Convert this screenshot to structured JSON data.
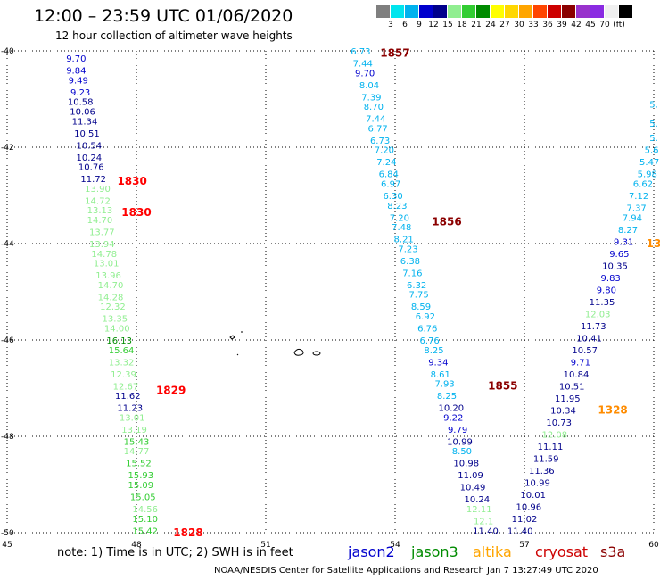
{
  "header": {
    "title": "12:00 – 23:59 UTC 01/06/2020",
    "subtitle": "12 hour collection of altimeter wave heights"
  },
  "colorbar": {
    "colors": [
      "#7f7f7f",
      "#00e5ee",
      "#00b2ee",
      "#0000cd",
      "#00008b",
      "#90ee90",
      "#32cd32",
      "#008b00",
      "#ffff00",
      "#ffd700",
      "#ffa500",
      "#ff4500",
      "#cd0000",
      "#8b0000",
      "#9932cc",
      "#8a2be2",
      "#f0f0f0",
      "#000000"
    ],
    "labels": [
      "3",
      "6",
      "9",
      "12",
      "15",
      "18",
      "21",
      "24",
      "27",
      "30",
      "33",
      "36",
      "39",
      "42",
      "45",
      "70",
      "(ft)"
    ]
  },
  "map": {
    "x_ticks": [
      "45",
      "48",
      "51",
      "54",
      "57",
      "60"
    ],
    "y_ticks": [
      "-40",
      "-42",
      "-44",
      "-46",
      "-48",
      "-50"
    ],
    "lon_range": [
      45,
      60
    ],
    "lat_range": [
      -50,
      -40
    ]
  },
  "tracks": [
    {
      "name": "track-1830-1828",
      "color_key": "mixed",
      "points": [
        {
          "lon": 46.6,
          "lat": -40.15,
          "v": "9.70",
          "c": "#0000cd"
        },
        {
          "lon": 46.6,
          "lat": -40.4,
          "v": "9.84",
          "c": "#0000cd"
        },
        {
          "lon": 46.65,
          "lat": -40.6,
          "v": "9.49",
          "c": "#0000cd"
        },
        {
          "lon": 46.7,
          "lat": -40.85,
          "v": "9.23",
          "c": "#0000cd"
        },
        {
          "lon": 46.7,
          "lat": -41.05,
          "v": "10.58",
          "c": "#00008b"
        },
        {
          "lon": 46.75,
          "lat": -41.25,
          "v": "10.06",
          "c": "#00008b"
        },
        {
          "lon": 46.8,
          "lat": -41.45,
          "v": "11.34",
          "c": "#00008b"
        },
        {
          "lon": 46.85,
          "lat": -41.7,
          "v": "10.51",
          "c": "#00008b"
        },
        {
          "lon": 46.9,
          "lat": -41.95,
          "v": "10.54",
          "c": "#00008b"
        },
        {
          "lon": 46.9,
          "lat": -42.2,
          "v": "10.24",
          "c": "#00008b"
        },
        {
          "lon": 46.95,
          "lat": -42.4,
          "v": "10.76",
          "c": "#00008b"
        },
        {
          "lon": 47.0,
          "lat": -42.65,
          "v": "11.72",
          "c": "#00008b"
        },
        {
          "lon": 47.1,
          "lat": -42.85,
          "v": "13.90",
          "c": "#90ee90"
        },
        {
          "lon": 47.1,
          "lat": -43.1,
          "v": "14.72",
          "c": "#90ee90"
        },
        {
          "lon": 47.15,
          "lat": -43.3,
          "v": "13.13",
          "c": "#90ee90"
        },
        {
          "lon": 47.15,
          "lat": -43.5,
          "v": "14.70",
          "c": "#90ee90"
        },
        {
          "lon": 47.2,
          "lat": -43.75,
          "v": "13.77",
          "c": "#90ee90"
        },
        {
          "lon": 47.2,
          "lat": -44.0,
          "v": "13.94",
          "c": "#90ee90"
        },
        {
          "lon": 47.25,
          "lat": -44.2,
          "v": "14.78",
          "c": "#90ee90"
        },
        {
          "lon": 47.3,
          "lat": -44.4,
          "v": "13.01",
          "c": "#90ee90"
        },
        {
          "lon": 47.35,
          "lat": -44.65,
          "v": "13.96",
          "c": "#90ee90"
        },
        {
          "lon": 47.4,
          "lat": -44.85,
          "v": "14.70",
          "c": "#90ee90"
        },
        {
          "lon": 47.4,
          "lat": -45.1,
          "v": "14.28",
          "c": "#90ee90"
        },
        {
          "lon": 47.45,
          "lat": -45.3,
          "v": "12.32",
          "c": "#90ee90"
        },
        {
          "lon": 47.5,
          "lat": -45.55,
          "v": "13.35",
          "c": "#90ee90"
        },
        {
          "lon": 47.55,
          "lat": -45.75,
          "v": "14.00",
          "c": "#90ee90"
        },
        {
          "lon": 47.6,
          "lat": -46.0,
          "v": "16.13",
          "c": "#008b00"
        },
        {
          "lon": 47.65,
          "lat": -46.2,
          "v": "15.64",
          "c": "#32cd32"
        },
        {
          "lon": 47.65,
          "lat": -46.45,
          "v": "13.32",
          "c": "#90ee90"
        },
        {
          "lon": 47.7,
          "lat": -46.7,
          "v": "12.39",
          "c": "#90ee90"
        },
        {
          "lon": 47.75,
          "lat": -46.95,
          "v": "12.67",
          "c": "#90ee90"
        },
        {
          "lon": 47.8,
          "lat": -47.15,
          "v": "11.62",
          "c": "#00008b"
        },
        {
          "lon": 47.85,
          "lat": -47.4,
          "v": "11.23",
          "c": "#00008b"
        },
        {
          "lon": 47.9,
          "lat": -47.6,
          "v": "13.01",
          "c": "#90ee90"
        },
        {
          "lon": 47.95,
          "lat": -47.85,
          "v": "13.19",
          "c": "#90ee90"
        },
        {
          "lon": 48.0,
          "lat": -48.1,
          "v": "15.43",
          "c": "#32cd32"
        },
        {
          "lon": 48.0,
          "lat": -48.3,
          "v": "14.77",
          "c": "#90ee90"
        },
        {
          "lon": 48.05,
          "lat": -48.55,
          "v": "15.52",
          "c": "#32cd32"
        },
        {
          "lon": 48.1,
          "lat": -48.8,
          "v": "15.93",
          "c": "#32cd32"
        },
        {
          "lon": 48.1,
          "lat": -49.0,
          "v": "15.09",
          "c": "#32cd32"
        },
        {
          "lon": 48.15,
          "lat": -49.25,
          "v": "15.05",
          "c": "#32cd32"
        },
        {
          "lon": 48.2,
          "lat": -49.5,
          "v": "14.56",
          "c": "#90ee90"
        },
        {
          "lon": 48.2,
          "lat": -49.7,
          "v": "15.10",
          "c": "#32cd32"
        },
        {
          "lon": 48.2,
          "lat": -49.95,
          "v": "15.42",
          "c": "#32cd32"
        }
      ]
    },
    {
      "name": "track-1857-1855",
      "color_key": "mixed",
      "points": [
        {
          "lon": 53.2,
          "lat": -40.0,
          "v": "6.73",
          "c": "#00b2ee"
        },
        {
          "lon": 53.25,
          "lat": -40.25,
          "v": "7.44",
          "c": "#00b2ee"
        },
        {
          "lon": 53.3,
          "lat": -40.45,
          "v": "9.70",
          "c": "#0000cd"
        },
        {
          "lon": 53.4,
          "lat": -40.7,
          "v": "8.04",
          "c": "#00b2ee"
        },
        {
          "lon": 53.45,
          "lat": -40.95,
          "v": "7.39",
          "c": "#00b2ee"
        },
        {
          "lon": 53.5,
          "lat": -41.15,
          "v": "8.70",
          "c": "#00b2ee"
        },
        {
          "lon": 53.55,
          "lat": -41.4,
          "v": "7.44",
          "c": "#00b2ee"
        },
        {
          "lon": 53.6,
          "lat": -41.6,
          "v": "6.77",
          "c": "#00b2ee"
        },
        {
          "lon": 53.65,
          "lat": -41.85,
          "v": "6.73",
          "c": "#00b2ee"
        },
        {
          "lon": 53.75,
          "lat": -42.05,
          "v": "7.20",
          "c": "#00b2ee"
        },
        {
          "lon": 53.8,
          "lat": -42.3,
          "v": "7.24",
          "c": "#00b2ee"
        },
        {
          "lon": 53.85,
          "lat": -42.55,
          "v": "6.84",
          "c": "#00b2ee"
        },
        {
          "lon": 53.9,
          "lat": -42.75,
          "v": "6.97",
          "c": "#00b2ee"
        },
        {
          "lon": 53.95,
          "lat": -43.0,
          "v": "6.30",
          "c": "#00b2ee"
        },
        {
          "lon": 54.05,
          "lat": -43.2,
          "v": "8.23",
          "c": "#00b2ee"
        },
        {
          "lon": 54.1,
          "lat": -43.45,
          "v": "7.20",
          "c": "#00b2ee"
        },
        {
          "lon": 54.15,
          "lat": -43.65,
          "v": "7.48",
          "c": "#00b2ee"
        },
        {
          "lon": 54.2,
          "lat": -43.9,
          "v": "8.21",
          "c": "#00b2ee"
        },
        {
          "lon": 54.3,
          "lat": -44.1,
          "v": "7.23",
          "c": "#00b2ee"
        },
        {
          "lon": 54.35,
          "lat": -44.35,
          "v": "6.38",
          "c": "#00b2ee"
        },
        {
          "lon": 54.4,
          "lat": -44.6,
          "v": "7.16",
          "c": "#00b2ee"
        },
        {
          "lon": 54.5,
          "lat": -44.85,
          "v": "6.32",
          "c": "#00b2ee"
        },
        {
          "lon": 54.55,
          "lat": -45.05,
          "v": "7.75",
          "c": "#00b2ee"
        },
        {
          "lon": 54.6,
          "lat": -45.3,
          "v": "8.59",
          "c": "#00b2ee"
        },
        {
          "lon": 54.7,
          "lat": -45.5,
          "v": "6.92",
          "c": "#00b2ee"
        },
        {
          "lon": 54.75,
          "lat": -45.75,
          "v": "6.76",
          "c": "#00b2ee"
        },
        {
          "lon": 54.8,
          "lat": -46.0,
          "v": "6.76",
          "c": "#00b2ee"
        },
        {
          "lon": 54.9,
          "lat": -46.2,
          "v": "8.25",
          "c": "#00b2ee"
        },
        {
          "lon": 55.0,
          "lat": -46.45,
          "v": "9.34",
          "c": "#0000cd"
        },
        {
          "lon": 55.05,
          "lat": -46.7,
          "v": "8.61",
          "c": "#00b2ee"
        },
        {
          "lon": 55.15,
          "lat": -46.9,
          "v": "7.93",
          "c": "#00b2ee"
        },
        {
          "lon": 55.2,
          "lat": -47.15,
          "v": "8.25",
          "c": "#00b2ee"
        },
        {
          "lon": 55.3,
          "lat": -47.4,
          "v": "10.20",
          "c": "#00008b"
        },
        {
          "lon": 55.35,
          "lat": -47.6,
          "v": "9.22",
          "c": "#0000cd"
        },
        {
          "lon": 55.45,
          "lat": -47.85,
          "v": "9.79",
          "c": "#0000cd"
        },
        {
          "lon": 55.5,
          "lat": -48.1,
          "v": "10.99",
          "c": "#00008b"
        },
        {
          "lon": 55.55,
          "lat": -48.3,
          "v": "8.50",
          "c": "#00b2ee"
        },
        {
          "lon": 55.65,
          "lat": -48.55,
          "v": "10.98",
          "c": "#00008b"
        },
        {
          "lon": 55.75,
          "lat": -48.8,
          "v": "11.09",
          "c": "#00008b"
        },
        {
          "lon": 55.8,
          "lat": -49.05,
          "v": "10.49",
          "c": "#00008b"
        },
        {
          "lon": 55.9,
          "lat": -49.3,
          "v": "10.24",
          "c": "#00008b"
        },
        {
          "lon": 55.95,
          "lat": -49.5,
          "v": "12.11",
          "c": "#90ee90"
        },
        {
          "lon": 56.05,
          "lat": -49.75,
          "v": "12.1",
          "c": "#90ee90"
        },
        {
          "lon": 56.1,
          "lat": -49.95,
          "v": "11.40",
          "c": "#00008b"
        }
      ]
    },
    {
      "name": "track-1856-1328",
      "color_key": "mixed",
      "points": [
        {
          "lon": 60.0,
          "lat": -41.1,
          "v": "5.",
          "c": "#00b2ee"
        },
        {
          "lon": 60.0,
          "lat": -41.5,
          "v": "5.",
          "c": "#00b2ee"
        },
        {
          "lon": 60.0,
          "lat": -41.8,
          "v": "5.",
          "c": "#00b2ee"
        },
        {
          "lon": 59.95,
          "lat": -42.05,
          "v": "5.6",
          "c": "#00b2ee"
        },
        {
          "lon": 59.9,
          "lat": -42.3,
          "v": "5.47",
          "c": "#00b2ee"
        },
        {
          "lon": 59.85,
          "lat": -42.55,
          "v": "5.98",
          "c": "#00b2ee"
        },
        {
          "lon": 59.75,
          "lat": -42.75,
          "v": "6.62",
          "c": "#00b2ee"
        },
        {
          "lon": 59.65,
          "lat": -43.0,
          "v": "7.12",
          "c": "#00b2ee"
        },
        {
          "lon": 59.6,
          "lat": -43.25,
          "v": "7.37",
          "c": "#00b2ee"
        },
        {
          "lon": 59.5,
          "lat": -43.45,
          "v": "7.94",
          "c": "#00b2ee"
        },
        {
          "lon": 59.4,
          "lat": -43.7,
          "v": "8.27",
          "c": "#00b2ee"
        },
        {
          "lon": 59.3,
          "lat": -43.95,
          "v": "9.31",
          "c": "#0000cd"
        },
        {
          "lon": 59.2,
          "lat": -44.2,
          "v": "9.65",
          "c": "#0000cd"
        },
        {
          "lon": 59.1,
          "lat": -44.45,
          "v": "10.35",
          "c": "#00008b"
        },
        {
          "lon": 59.0,
          "lat": -44.7,
          "v": "9.83",
          "c": "#0000cd"
        },
        {
          "lon": 58.9,
          "lat": -44.95,
          "v": "9.80",
          "c": "#0000cd"
        },
        {
          "lon": 58.8,
          "lat": -45.2,
          "v": "11.35",
          "c": "#00008b"
        },
        {
          "lon": 58.7,
          "lat": -45.45,
          "v": "12.03",
          "c": "#90ee90"
        },
        {
          "lon": 58.6,
          "lat": -45.7,
          "v": "11.73",
          "c": "#00008b"
        },
        {
          "lon": 58.5,
          "lat": -45.95,
          "v": "10.41",
          "c": "#00008b"
        },
        {
          "lon": 58.4,
          "lat": -46.2,
          "v": "10.57",
          "c": "#00008b"
        },
        {
          "lon": 58.3,
          "lat": -46.45,
          "v": "9.71",
          "c": "#0000cd"
        },
        {
          "lon": 58.2,
          "lat": -46.7,
          "v": "10.84",
          "c": "#00008b"
        },
        {
          "lon": 58.1,
          "lat": -46.95,
          "v": "10.51",
          "c": "#00008b"
        },
        {
          "lon": 58.0,
          "lat": -47.2,
          "v": "11.95",
          "c": "#00008b"
        },
        {
          "lon": 57.9,
          "lat": -47.45,
          "v": "10.34",
          "c": "#00008b"
        },
        {
          "lon": 57.8,
          "lat": -47.7,
          "v": "10.73",
          "c": "#00008b"
        },
        {
          "lon": 57.7,
          "lat": -47.95,
          "v": "12.08",
          "c": "#90ee90"
        },
        {
          "lon": 57.6,
          "lat": -48.2,
          "v": "11.11",
          "c": "#00008b"
        },
        {
          "lon": 57.5,
          "lat": -48.45,
          "v": "11.59",
          "c": "#00008b"
        },
        {
          "lon": 57.4,
          "lat": -48.7,
          "v": "11.36",
          "c": "#00008b"
        },
        {
          "lon": 57.3,
          "lat": -48.95,
          "v": "10.99",
          "c": "#00008b"
        },
        {
          "lon": 57.2,
          "lat": -49.2,
          "v": "10.01",
          "c": "#00008b"
        },
        {
          "lon": 57.1,
          "lat": -49.45,
          "v": "10.96",
          "c": "#00008b"
        },
        {
          "lon": 57.0,
          "lat": -49.7,
          "v": "11.02",
          "c": "#00008b"
        },
        {
          "lon": 56.9,
          "lat": -49.95,
          "v": "11.40",
          "c": "#00008b"
        }
      ]
    }
  ],
  "time_labels": [
    {
      "text": "1857",
      "lon": 54.0,
      "lat": -40.05,
      "color": "#8b0000"
    },
    {
      "text": "1830",
      "lon": 47.9,
      "lat": -42.7,
      "color": "#ff0000"
    },
    {
      "text": "1830",
      "lon": 48.0,
      "lat": -43.35,
      "color": "#ff0000"
    },
    {
      "text": "1856",
      "lon": 55.2,
      "lat": -43.55,
      "color": "#8b0000"
    },
    {
      "text": "13",
      "lon": 60.0,
      "lat": -44.0,
      "color": "#ff8c00"
    },
    {
      "text": "1855",
      "lon": 56.5,
      "lat": -46.95,
      "color": "#8b0000"
    },
    {
      "text": "1829",
      "lon": 48.8,
      "lat": -47.05,
      "color": "#ff0000"
    },
    {
      "text": "1328",
      "lon": 59.05,
      "lat": -47.45,
      "color": "#ff8c00"
    },
    {
      "text": "1828",
      "lon": 49.2,
      "lat": -50.0,
      "color": "#ff0000"
    }
  ],
  "footer": {
    "note": "note:  1) Time is in UTC;  2) SWH is in feet",
    "legend": [
      {
        "label": "jason2",
        "color": "#0000cd"
      },
      {
        "label": "jason3",
        "color": "#008b00"
      },
      {
        "label": "altika",
        "color": "#ffa500"
      },
      {
        "label": "cryosat",
        "color": "#cd0000"
      },
      {
        "label": "s3a",
        "color": "#8b0000"
      }
    ],
    "credit": "NOAA/NESDIS Center for Satellite Applications and Research   Jan  7 13:27:49 UTC 2020"
  }
}
